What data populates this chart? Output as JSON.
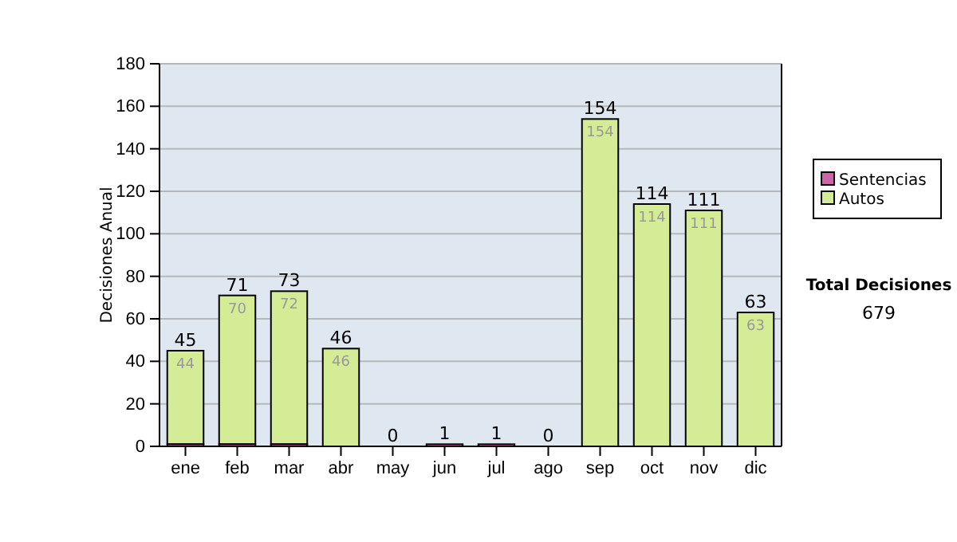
{
  "chart_data": {
    "type": "bar",
    "stacked": true,
    "ylabel": "Decisiones Anual",
    "categories": [
      "ene",
      "feb",
      "mar",
      "abr",
      "may",
      "jun",
      "jul",
      "ago",
      "sep",
      "oct",
      "nov",
      "dic"
    ],
    "series": [
      {
        "name": "Sentencias",
        "color": "#cc66aa",
        "values": [
          1,
          1,
          1,
          0,
          0,
          1,
          1,
          0,
          0,
          0,
          0,
          0
        ]
      },
      {
        "name": "Autos",
        "color": "#d4ec96",
        "values": [
          44,
          70,
          72,
          46,
          0,
          0,
          0,
          0,
          154,
          114,
          111,
          63
        ],
        "value_labels": [
          "44",
          "70",
          "72",
          "46",
          null,
          null,
          null,
          null,
          "154",
          "114",
          "111",
          "63"
        ]
      }
    ],
    "totals": [
      "45",
      "71",
      "73",
      "46",
      "0",
      "1",
      "1",
      "0",
      "154",
      "114",
      "111",
      "63"
    ],
    "ylim": [
      0,
      180
    ],
    "yticks": [
      0,
      20,
      40,
      60,
      80,
      100,
      120,
      140,
      160,
      180
    ],
    "grid": "y",
    "legend": "right",
    "annotations": [
      "Total Decisiones",
      "679"
    ]
  }
}
